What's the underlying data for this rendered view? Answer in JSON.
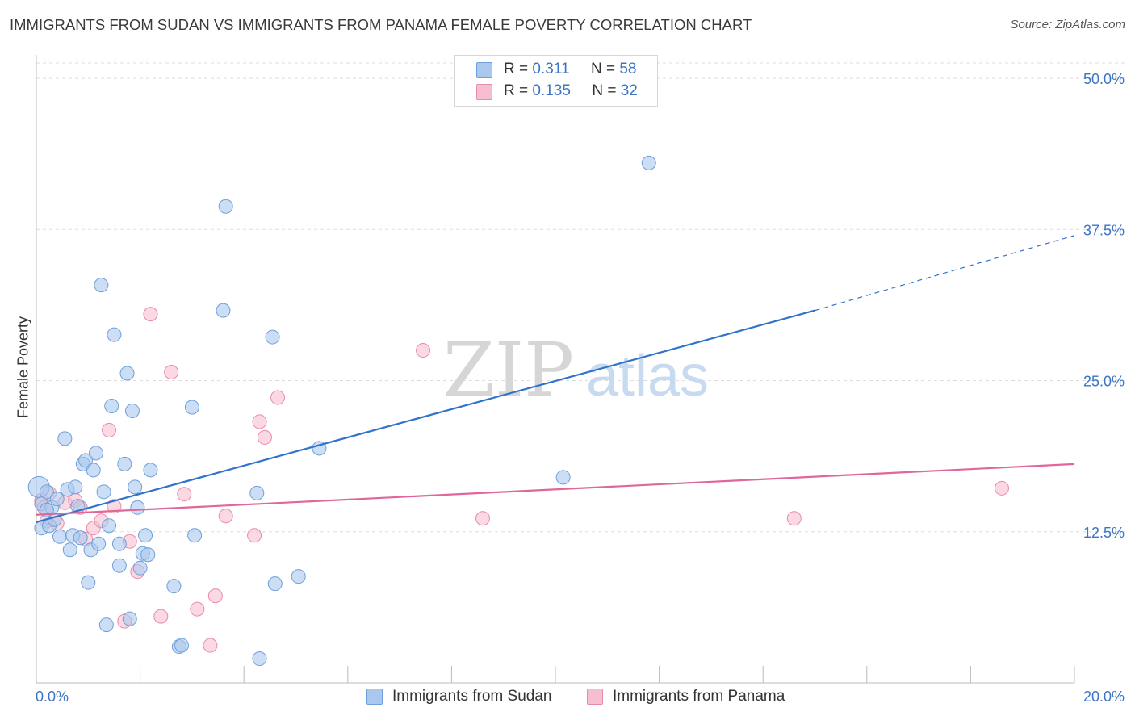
{
  "title": "IMMIGRANTS FROM SUDAN VS IMMIGRANTS FROM PANAMA FEMALE POVERTY CORRELATION CHART",
  "source": "Source: ZipAtlas.com",
  "watermark": {
    "zip": "ZIP",
    "atlas": "atlas"
  },
  "legend": [
    {
      "r_label": "R =",
      "r_value": "0.311",
      "n_label": "N =",
      "n_value": "58"
    },
    {
      "r_label": "R =",
      "r_value": "0.135",
      "n_label": "N =",
      "n_value": "32"
    }
  ],
  "bottom_legend": [
    "Immigrants from Sudan",
    "Immigrants from Panama"
  ],
  "colors": {
    "sudan_fill": "#aac8ee",
    "sudan_stroke": "#6f9fd8",
    "sudan_line": "#2f74cc",
    "panama_fill": "#f6bfd1",
    "panama_stroke": "#e98aaa",
    "panama_line": "#e0679a",
    "tick_label": "#3b74c4",
    "grid": "#dddddd"
  },
  "chart_data": {
    "type": "scatter",
    "title": "IMMIGRANTS FROM SUDAN VS IMMIGRANTS FROM PANAMA FEMALE POVERTY CORRELATION CHART",
    "xlabel": "",
    "ylabel": "Female Poverty",
    "xlim": [
      0,
      20
    ],
    "ylim": [
      0,
      50
    ],
    "x_tick_labels": [
      "0.0%",
      "20.0%"
    ],
    "y_ticks": [
      12.5,
      25.0,
      37.5,
      50.0
    ],
    "y_tick_labels": [
      "12.5%",
      "25.0%",
      "37.5%",
      "50.0%"
    ],
    "grid": true,
    "legend_position": "top-center",
    "series": [
      {
        "name": "Immigrants from Sudan",
        "r": 0.311,
        "n": 58,
        "trend": {
          "x0": 0,
          "y0": 13.3,
          "x1": 15.0,
          "y1": 30.8,
          "dashed_to_x": 20.0,
          "dashed_to_y": 37.0
        },
        "points": [
          [
            0.05,
            16.2
          ],
          [
            0.1,
            14.8
          ],
          [
            0.1,
            12.8
          ],
          [
            0.2,
            15.8
          ],
          [
            0.25,
            13.0
          ],
          [
            0.3,
            14.5
          ],
          [
            0.35,
            13.5
          ],
          [
            0.4,
            15.2
          ],
          [
            0.45,
            12.1
          ],
          [
            0.55,
            20.2
          ],
          [
            0.6,
            16.0
          ],
          [
            0.65,
            11.0
          ],
          [
            0.7,
            12.2
          ],
          [
            0.75,
            16.2
          ],
          [
            0.8,
            14.6
          ],
          [
            0.85,
            12.0
          ],
          [
            0.9,
            18.1
          ],
          [
            0.95,
            18.4
          ],
          [
            1.0,
            8.3
          ],
          [
            1.05,
            11.0
          ],
          [
            1.1,
            17.6
          ],
          [
            1.15,
            19.0
          ],
          [
            1.2,
            11.5
          ],
          [
            1.25,
            32.9
          ],
          [
            1.3,
            15.8
          ],
          [
            1.35,
            4.8
          ],
          [
            1.4,
            13.0
          ],
          [
            1.45,
            22.9
          ],
          [
            1.5,
            28.8
          ],
          [
            1.6,
            11.5
          ],
          [
            1.6,
            9.7
          ],
          [
            1.7,
            18.1
          ],
          [
            1.75,
            25.6
          ],
          [
            1.8,
            5.3
          ],
          [
            1.85,
            22.5
          ],
          [
            1.9,
            16.2
          ],
          [
            1.95,
            14.5
          ],
          [
            2.0,
            9.5
          ],
          [
            2.05,
            10.7
          ],
          [
            2.1,
            12.2
          ],
          [
            2.15,
            10.6
          ],
          [
            2.2,
            17.6
          ],
          [
            2.65,
            8.0
          ],
          [
            2.75,
            3.0
          ],
          [
            2.8,
            3.1
          ],
          [
            3.0,
            22.8
          ],
          [
            3.05,
            12.2
          ],
          [
            3.6,
            30.8
          ],
          [
            3.65,
            39.4
          ],
          [
            4.25,
            15.7
          ],
          [
            4.3,
            2.0
          ],
          [
            4.55,
            28.6
          ],
          [
            4.6,
            8.2
          ],
          [
            5.05,
            8.8
          ],
          [
            5.45,
            19.4
          ],
          [
            10.15,
            17.0
          ],
          [
            11.8,
            43.0
          ],
          [
            0.2,
            14.3
          ]
        ]
      },
      {
        "name": "Immigrants from Panama",
        "r": 0.135,
        "n": 32,
        "trend": {
          "x0": 0,
          "y0": 13.9,
          "x1": 20.0,
          "y1": 18.1
        },
        "points": [
          [
            0.1,
            15.1
          ],
          [
            0.15,
            14.5
          ],
          [
            0.2,
            13.4
          ],
          [
            0.25,
            15.7
          ],
          [
            0.4,
            13.2
          ],
          [
            0.55,
            14.9
          ],
          [
            0.75,
            15.1
          ],
          [
            0.85,
            14.5
          ],
          [
            0.95,
            11.9
          ],
          [
            1.1,
            12.8
          ],
          [
            1.25,
            13.4
          ],
          [
            1.4,
            20.9
          ],
          [
            1.5,
            14.6
          ],
          [
            1.7,
            5.1
          ],
          [
            1.8,
            11.7
          ],
          [
            1.95,
            9.2
          ],
          [
            2.2,
            30.5
          ],
          [
            2.4,
            5.5
          ],
          [
            2.6,
            25.7
          ],
          [
            2.85,
            15.6
          ],
          [
            3.1,
            6.1
          ],
          [
            3.35,
            3.1
          ],
          [
            3.45,
            7.2
          ],
          [
            3.65,
            13.8
          ],
          [
            4.2,
            12.2
          ],
          [
            4.3,
            21.6
          ],
          [
            4.4,
            20.3
          ],
          [
            4.65,
            23.6
          ],
          [
            7.45,
            27.5
          ],
          [
            8.6,
            13.6
          ],
          [
            14.6,
            13.6
          ],
          [
            18.6,
            16.1
          ]
        ]
      }
    ]
  }
}
